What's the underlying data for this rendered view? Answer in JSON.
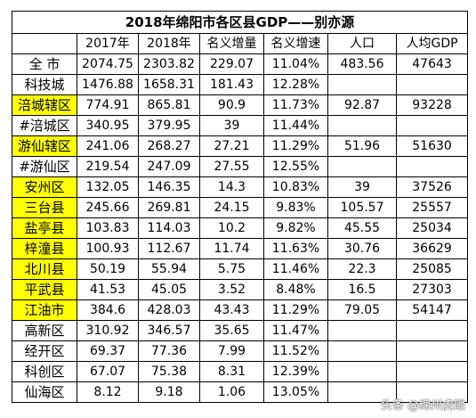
{
  "title": "2018年绵阳市各区县GDP——别亦源",
  "headers": [
    "",
    "2017年",
    "2018年",
    "名义增量",
    "名义增速",
    "人口",
    "人均GDP"
  ],
  "rows": [
    {
      "name": "全 市",
      "highlight": false,
      "cells": [
        "2074.75",
        "2303.82",
        "229.07",
        "11.04%",
        "483.56",
        "47643"
      ]
    },
    {
      "name": "科技城",
      "highlight": false,
      "cells": [
        "1476.88",
        "1658.31",
        "181.43",
        "12.28%",
        "",
        ""
      ]
    },
    {
      "name": "涪城辖区",
      "highlight": true,
      "cells": [
        "774.91",
        "865.81",
        "90.9",
        "11.73%",
        "92.87",
        "93228"
      ]
    },
    {
      "name": "#涪城区",
      "highlight": false,
      "cells": [
        "340.95",
        "379.95",
        "39",
        "11.44%",
        "",
        ""
      ]
    },
    {
      "name": "游仙辖区",
      "highlight": true,
      "cells": [
        "241.06",
        "268.27",
        "27.21",
        "11.29%",
        "51.96",
        "51630"
      ]
    },
    {
      "name": "#游仙区",
      "highlight": false,
      "cells": [
        "219.54",
        "247.09",
        "27.55",
        "12.55%",
        "",
        ""
      ]
    },
    {
      "name": "安州区",
      "highlight": true,
      "cells": [
        "132.05",
        "146.35",
        "14.3",
        "10.83%",
        "39",
        "37526"
      ]
    },
    {
      "name": "三台县",
      "highlight": true,
      "cells": [
        "245.66",
        "269.81",
        "24.15",
        "9.83%",
        "105.57",
        "25557"
      ]
    },
    {
      "name": "盐亭县",
      "highlight": true,
      "cells": [
        "103.83",
        "114.03",
        "10.2",
        "9.82%",
        "45.55",
        "25034"
      ]
    },
    {
      "name": "梓潼县",
      "highlight": true,
      "cells": [
        "100.93",
        "112.67",
        "11.74",
        "11.63%",
        "30.76",
        "36629"
      ]
    },
    {
      "name": "北川县",
      "highlight": true,
      "cells": [
        "50.19",
        "55.94",
        "5.75",
        "11.46%",
        "22.3",
        "25085"
      ]
    },
    {
      "name": "平武县",
      "highlight": true,
      "cells": [
        "41.53",
        "45.05",
        "3.52",
        "8.48%",
        "16.5",
        "27303"
      ]
    },
    {
      "name": "江油市",
      "highlight": true,
      "cells": [
        "384.6",
        "428.03",
        "43.43",
        "11.29%",
        "79.05",
        "54147"
      ]
    },
    {
      "name": "高新区",
      "highlight": false,
      "cells": [
        "310.92",
        "346.57",
        "35.65",
        "11.47%",
        "",
        ""
      ]
    },
    {
      "name": "经开区",
      "highlight": false,
      "cells": [
        "69.37",
        "77.36",
        "7.99",
        "11.52%",
        "",
        ""
      ]
    },
    {
      "name": "科创区",
      "highlight": false,
      "cells": [
        "67.07",
        "75.38",
        "8.31",
        "12.39%",
        "",
        ""
      ]
    },
    {
      "name": "仙海区",
      "highlight": false,
      "cells": [
        "8.12",
        "9.18",
        "1.06",
        "13.05%",
        "",
        ""
      ]
    }
  ],
  "colors": {
    "highlight": "#ffff00",
    "border": "#000000"
  },
  "watermark": "头条 @绵州虎眼"
}
